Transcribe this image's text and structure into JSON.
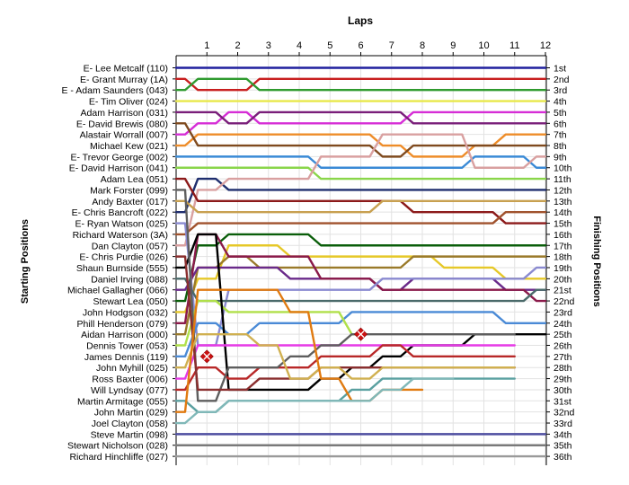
{
  "chart_data": {
    "type": "line",
    "title": "Laps",
    "ylabel_left": "Starting Positions",
    "ylabel_right": "Finishing Positions",
    "x_ticks": [
      "1",
      "2",
      "3",
      "4",
      "5",
      "6",
      "7",
      "8",
      "9",
      "10",
      "11",
      "12"
    ],
    "y_range": [
      1,
      36
    ],
    "y_inverted": true,
    "grid": true,
    "drivers": [
      "E- Lee Metcalf (110)",
      "E- Grant Murray (1A)",
      "E - Adam Saunders (043)",
      "E- Tim Oliver (024)",
      "Adam Harrison (031)",
      "E- David Brewis (080)",
      "Alastair Worrall (007)",
      "Michael Kew (021)",
      "E- Trevor George (002)",
      "E- David Harrison (041)",
      "Adam Lea (051)",
      "Mark Forster (099)",
      "Andy Baxter (017)",
      "E- Chris Bancroft (022)",
      "E- Ryan Watson (025)",
      "Richard Waterson (3A)",
      "Dan Clayton (057)",
      "E- Chris Purdie (026)",
      "Shaun Burnside (555)",
      "Daniel Irving (088)",
      "Michael Gallagher (066)",
      "Stewart Lea (050)",
      "John Hodgson (032)",
      "Phill Henderson (079)",
      "Aidan Harrison (000)",
      "Dennis Tower (053)",
      "James Dennis (119)",
      "John Myhill (025)",
      "Ross Baxter (006)",
      "Will Lyndsay (077)",
      "Martin Armitage (055)",
      "John Martin (029)",
      "Joel Clayton (058)",
      "Steve Martin (098)",
      "Stewart Nicholson (028)",
      "Richard Hinchliffe (027)"
    ],
    "finishing_labels": [
      "1st",
      "2nd",
      "3rd",
      "4th",
      "5th",
      "6th",
      "7th",
      "8th",
      "9th",
      "10th",
      "11th",
      "12th",
      "13th",
      "14th",
      "15th",
      "16th",
      "17th",
      "18th",
      "19th",
      "20th",
      "21st",
      "22nd",
      "23rd",
      "24th",
      "25th",
      "26th",
      "27th",
      "28th",
      "29th",
      "30th",
      "31st",
      "32nd",
      "33rd",
      "34th",
      "35th",
      "36th"
    ],
    "series": [
      {
        "color": "#1f1f9e",
        "values": [
          1,
          1,
          1,
          1,
          1,
          1,
          1,
          1,
          1,
          1,
          1,
          1,
          1
        ]
      },
      {
        "color": "#c81e1e",
        "values": [
          2,
          3,
          3,
          2,
          2,
          2,
          2,
          2,
          2,
          2,
          2,
          2,
          2
        ]
      },
      {
        "color": "#2e9a2e",
        "values": [
          3,
          2,
          2,
          3,
          3,
          3,
          3,
          3,
          3,
          3,
          3,
          3,
          3
        ]
      },
      {
        "color": "#e8e84a",
        "values": [
          4,
          4,
          4,
          4,
          4,
          4,
          4,
          4,
          4,
          4,
          4,
          4,
          4
        ]
      },
      {
        "color": "#d62ed6",
        "values": [
          7,
          6,
          5,
          6,
          6,
          6,
          6,
          6,
          5,
          5,
          5,
          5,
          5
        ]
      },
      {
        "color": "#7a1f7a",
        "values": [
          5,
          5,
          6,
          5,
          5,
          5,
          5,
          5,
          6,
          6,
          6,
          6,
          6
        ]
      },
      {
        "color": "#ee8c28",
        "values": [
          8,
          7,
          7,
          7,
          7,
          7,
          7,
          8,
          9,
          9,
          8,
          7,
          7
        ]
      },
      {
        "color": "#7f4a1e",
        "values": [
          6,
          8,
          8,
          8,
          8,
          8,
          8,
          9,
          8,
          8,
          8,
          8,
          8
        ]
      },
      {
        "color": "#3a8ad6",
        "values": [
          9,
          9,
          9,
          9,
          9,
          10,
          10,
          10,
          10,
          10,
          9,
          9,
          10
        ]
      },
      {
        "color": "#8ad64a",
        "values": [
          10,
          10,
          10,
          10,
          10,
          11,
          11,
          11,
          11,
          11,
          11,
          11,
          11
        ]
      },
      {
        "color": "#1f2e6e",
        "values": [
          14,
          11,
          12,
          12,
          12,
          12,
          12,
          12,
          12,
          12,
          12,
          12,
          12
        ]
      },
      {
        "color": "#d9a0a0",
        "values": [
          17,
          12,
          11,
          11,
          11,
          9,
          9,
          7,
          7,
          7,
          10,
          10,
          9
        ]
      },
      {
        "color": "#8c1a1a",
        "values": [
          11,
          13,
          13,
          13,
          13,
          13,
          13,
          13,
          14,
          14,
          14,
          15,
          15
        ]
      },
      {
        "color": "#c8a050",
        "values": [
          13,
          14,
          14,
          14,
          14,
          14,
          14,
          13,
          13,
          13,
          13,
          13,
          13
        ]
      },
      {
        "color": "#a0522d",
        "values": [
          16,
          15,
          15,
          15,
          15,
          15,
          15,
          15,
          15,
          15,
          15,
          14,
          14
        ]
      },
      {
        "color": "#0a5e0a",
        "values": [
          22,
          17,
          16,
          16,
          16,
          17,
          17,
          17,
          17,
          17,
          17,
          17,
          17
        ]
      },
      {
        "color": "#e6c828",
        "values": [
          23,
          20,
          17,
          17,
          18,
          18,
          18,
          18,
          18,
          19,
          19,
          20,
          20
        ]
      },
      {
        "color": "#9a7a2a",
        "values": [
          25,
          19,
          18,
          19,
          19,
          19,
          19,
          19,
          18,
          18,
          18,
          18,
          18
        ]
      },
      {
        "color": "#6a2a8a",
        "values": [
          21,
          19,
          19,
          19,
          20,
          20,
          20,
          21,
          20,
          20,
          20,
          21,
          21
        ]
      },
      {
        "color": "#8a1a4a",
        "values": [
          24,
          16,
          18,
          18,
          18,
          20,
          20,
          21,
          21,
          21,
          21,
          21,
          22
        ]
      },
      {
        "color": "#8a8ad0",
        "values": [
          15,
          26,
          21,
          21,
          21,
          21,
          21,
          20,
          20,
          20,
          20,
          20,
          19
        ]
      },
      {
        "color": "#4a6a6a",
        "values": [
          20,
          22,
          22,
          22,
          22,
          22,
          22,
          22,
          22,
          22,
          22,
          22,
          21
        ]
      },
      {
        "color": "#4a8ad6",
        "values": [
          27,
          24,
          25,
          24,
          24,
          24,
          23,
          23,
          23,
          23,
          23,
          24,
          24
        ]
      },
      {
        "color": "#b0e04a",
        "values": [
          26,
          22,
          23,
          23,
          23,
          23,
          25
        ]
      },
      {
        "color": "#000000",
        "values": [
          19,
          16,
          30,
          30,
          30,
          29,
          28,
          27,
          26,
          26,
          25,
          25,
          25
        ]
      },
      {
        "color": "#e63ae6",
        "values": [
          29,
          26,
          26,
          26,
          26,
          26,
          26,
          26,
          26,
          26,
          26,
          26
        ]
      },
      {
        "color": "#b82828",
        "values": [
          30,
          28,
          29,
          28,
          28,
          27,
          27,
          26,
          27,
          27,
          27,
          27
        ]
      },
      {
        "color": "#5e5e5e",
        "values": [
          12,
          31,
          28,
          28,
          27,
          26,
          25,
          25,
          25,
          25,
          25,
          25
        ]
      },
      {
        "color": "#8a2e2e",
        "values": [
          18,
          30,
          30,
          29,
          29,
          28,
          28,
          28,
          28,
          28,
          28,
          28
        ]
      },
      {
        "color": "#d0b050",
        "values": [
          28,
          25,
          25,
          26,
          29,
          28,
          29,
          28,
          28,
          28,
          28,
          28
        ]
      },
      {
        "color": "#5aa0a0",
        "values": [
          31,
          32,
          31,
          31,
          31,
          31,
          30,
          29,
          29,
          29,
          29,
          29
        ]
      },
      {
        "color": "#e07a10",
        "values": [
          32,
          21,
          21,
          21,
          23,
          29,
          31,
          30,
          30
        ]
      },
      {
        "color": "#80b8b8",
        "values": [
          33,
          32,
          31,
          31,
          31,
          31,
          31,
          30,
          29,
          29
        ]
      },
      {
        "color": "#4e4ea0",
        "values": [
          34,
          34,
          34,
          34,
          34,
          34,
          34,
          34,
          34,
          34,
          34,
          34,
          34
        ]
      },
      {
        "color": "#7a7a7a",
        "values": [
          35,
          35,
          35,
          35,
          35,
          35,
          35,
          35,
          35,
          35,
          35,
          35,
          35
        ]
      },
      {
        "color": "#9a9a9a",
        "values": [
          36,
          36,
          36,
          36,
          36,
          36,
          36,
          36,
          36,
          36,
          36,
          36,
          36
        ]
      }
    ],
    "retirements": [
      {
        "lap": 6,
        "position": 25
      },
      {
        "lap": 1,
        "position": 27
      }
    ],
    "marker_color": "#cc1111"
  }
}
